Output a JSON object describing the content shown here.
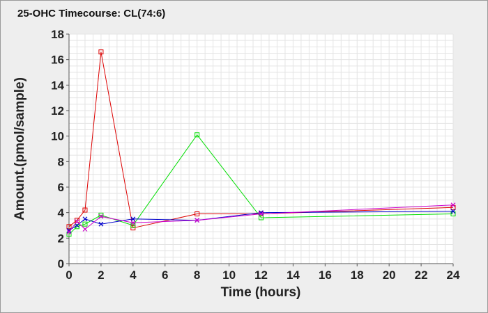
{
  "chart_data": {
    "type": "line",
    "title": "25-OHC Timecourse: CL(74:6)",
    "xlabel": "Time (hours)",
    "ylabel": "Amount.(pmol/sample)",
    "xlim": [
      0,
      24
    ],
    "ylim": [
      0,
      18
    ],
    "xticks": [
      0,
      2,
      4,
      6,
      8,
      10,
      12,
      14,
      16,
      18,
      20,
      22,
      24
    ],
    "yticks": [
      0,
      2,
      4,
      6,
      8,
      10,
      12,
      14,
      16,
      18
    ],
    "grid": true,
    "legend": "none",
    "series": [
      {
        "color": "#dd0000",
        "marker": "square",
        "x": [
          0,
          0.5,
          1,
          2,
          4,
          8,
          12,
          24
        ],
        "y": [
          2.9,
          3.4,
          4.2,
          16.6,
          2.8,
          3.9,
          3.9,
          4.4
        ]
      },
      {
        "color": "#00dd00",
        "marker": "square",
        "x": [
          0,
          0.5,
          1,
          2,
          4,
          8,
          12,
          24
        ],
        "y": [
          2.3,
          2.9,
          3.1,
          3.8,
          3.0,
          10.1,
          3.6,
          3.9
        ]
      },
      {
        "color": "#0000cc",
        "marker": "x",
        "x": [
          0,
          0.5,
          1,
          2,
          4,
          8,
          12,
          24
        ],
        "y": [
          2.6,
          3.0,
          3.5,
          3.1,
          3.5,
          3.4,
          4.0,
          4.1
        ]
      },
      {
        "color": "#cc00cc",
        "marker": "x",
        "x": [
          0,
          0.5,
          1,
          2,
          4,
          8,
          12,
          24
        ],
        "y": [
          2.5,
          3.3,
          2.7,
          3.7,
          3.2,
          3.4,
          3.9,
          4.6
        ]
      }
    ]
  }
}
